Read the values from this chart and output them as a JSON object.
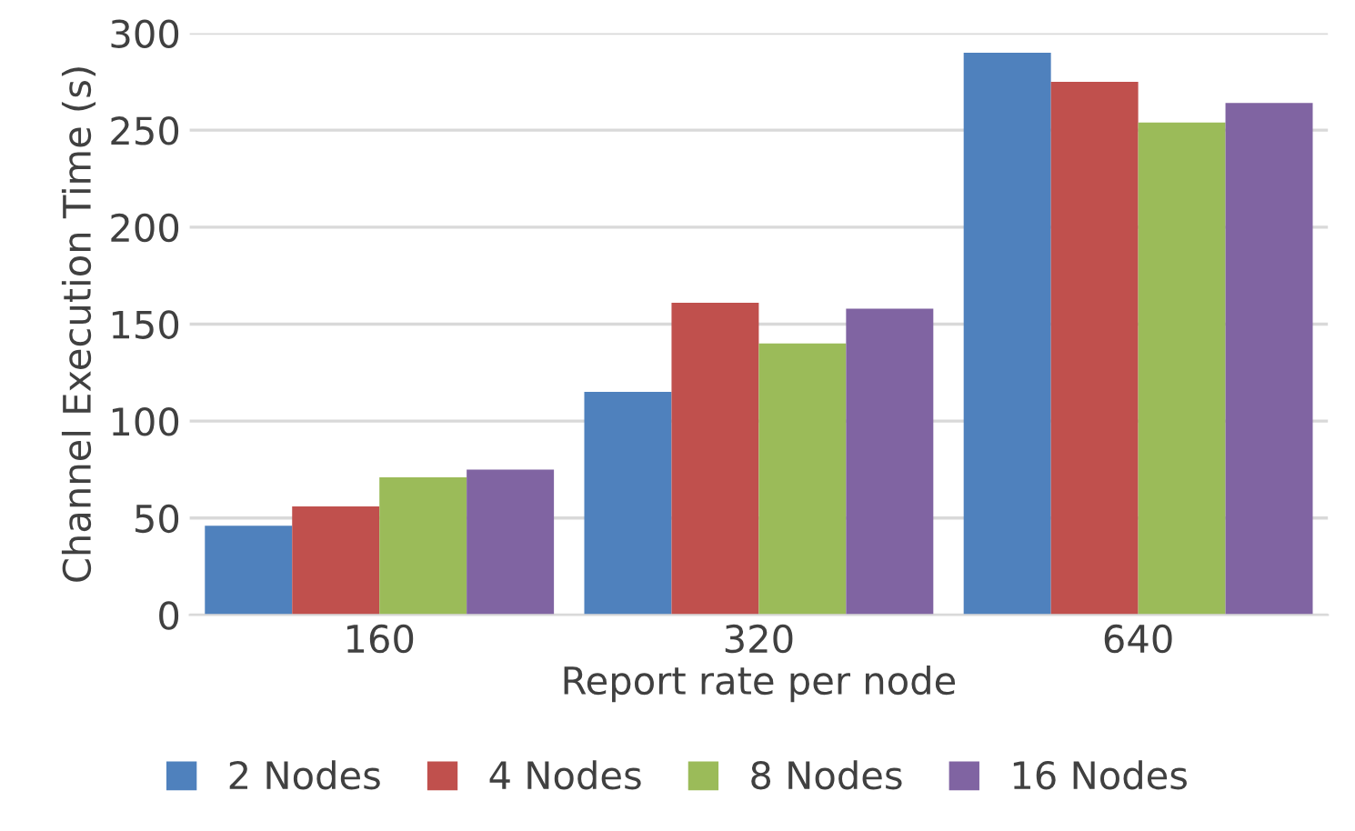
{
  "chart_data": {
    "type": "bar",
    "xlabel": "Report rate per node",
    "ylabel": "Channel Execution Time (s)",
    "categories": [
      "160",
      "320",
      "640"
    ],
    "series": [
      {
        "name": "2 Nodes",
        "color": "#4f81bd",
        "values": [
          46,
          115,
          290
        ]
      },
      {
        "name": "4 Nodes",
        "color": "#c0504d",
        "values": [
          56,
          161,
          275
        ]
      },
      {
        "name": "8 Nodes",
        "color": "#9bbb59",
        "values": [
          71,
          140,
          254
        ]
      },
      {
        "name": "16 Nodes",
        "color": "#8064a2",
        "values": [
          75,
          158,
          264
        ]
      }
    ],
    "ylim": [
      0,
      300
    ],
    "yticks": [
      0,
      50,
      100,
      150,
      200,
      250,
      300
    ],
    "grid": "y",
    "legend": "bottom"
  }
}
